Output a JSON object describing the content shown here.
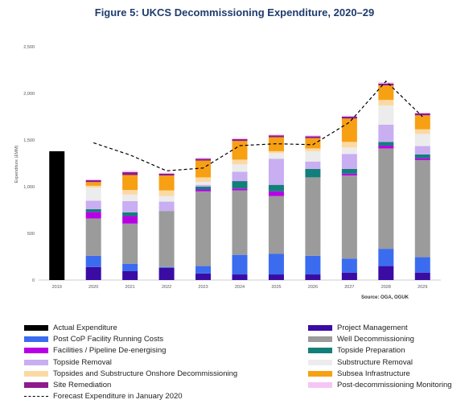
{
  "title": "Figure 5: UKCS Decommissioning Expenditure, 2020–29",
  "source": "Source: OGA, OGUK",
  "chart_data": {
    "type": "bar",
    "stacked": true,
    "ylabel": "Expenditure (£MM)",
    "xlabel": "",
    "ylim": [
      0,
      2500
    ],
    "yticks": [
      0,
      500,
      1000,
      1500,
      2000,
      2500
    ],
    "ytick_labels": [
      "0",
      "500",
      "1,000",
      "1,500",
      "2,000",
      "2,500"
    ],
    "grid": false,
    "categories": [
      "2019",
      "2020",
      "2021",
      "2022",
      "2023",
      "2024",
      "2025",
      "2026",
      "2027",
      "2028",
      "2029"
    ],
    "series": [
      {
        "name": "Actual Expenditure",
        "color": "#000000",
        "values": [
          1380,
          0,
          0,
          0,
          0,
          0,
          0,
          0,
          0,
          0,
          0
        ]
      },
      {
        "name": "Project Management",
        "color": "#3a0ca3",
        "values": [
          0,
          140,
          95,
          130,
          70,
          60,
          60,
          60,
          80,
          150,
          80
        ]
      },
      {
        "name": "Post CoP Facility Running Costs",
        "color": "#3b6cf0",
        "values": [
          0,
          120,
          80,
          10,
          80,
          210,
          220,
          200,
          150,
          185,
          165
        ]
      },
      {
        "name": "Well Decommissioning",
        "color": "#9b9b9b",
        "values": [
          0,
          400,
          430,
          600,
          800,
          690,
          620,
          840,
          890,
          1075,
          1040
        ]
      },
      {
        "name": "Facilities / Pipeline De-energising",
        "color": "#b800e6",
        "values": [
          0,
          70,
          80,
          0,
          20,
          20,
          50,
          0,
          20,
          30,
          20
        ]
      },
      {
        "name": "Topside Preparation",
        "color": "#137f7a",
        "values": [
          0,
          30,
          40,
          0,
          30,
          80,
          70,
          90,
          50,
          40,
          40
        ]
      },
      {
        "name": "Topside Removal",
        "color": "#c9aef2",
        "values": [
          0,
          90,
          120,
          100,
          20,
          100,
          280,
          80,
          160,
          185,
          90
        ]
      },
      {
        "name": "Substructure Removal",
        "color": "#ececec",
        "values": [
          0,
          140,
          70,
          60,
          30,
          80,
          60,
          110,
          70,
          205,
          130
        ]
      },
      {
        "name": "Topsides and Substructure Onshore Decommissioning",
        "color": "#fcd9a3",
        "values": [
          0,
          20,
          50,
          60,
          50,
          50,
          20,
          30,
          60,
          60,
          50
        ]
      },
      {
        "name": "Subsea Infrastructure",
        "color": "#f7a014",
        "values": [
          0,
          40,
          160,
          160,
          180,
          200,
          150,
          110,
          250,
          155,
          150
        ]
      },
      {
        "name": "Site Remediation",
        "color": "#8e1a8e",
        "values": [
          0,
          20,
          30,
          20,
          20,
          20,
          20,
          20,
          20,
          20,
          20
        ]
      },
      {
        "name": "Post-decommissioning Monitoring",
        "color": "#f5c6f5",
        "values": [
          0,
          10,
          15,
          10,
          10,
          10,
          10,
          10,
          10,
          15,
          10
        ]
      }
    ],
    "forecast_line": {
      "name": "Forecast Expenditure in January 2020",
      "style": "dashed",
      "color": "#000000",
      "x": [
        "2020",
        "2021",
        "2022",
        "2023",
        "2024",
        "2025",
        "2026",
        "2027",
        "2028",
        "2029"
      ],
      "values": [
        1470,
        1340,
        1170,
        1200,
        1440,
        1460,
        1450,
        1690,
        2130,
        1750
      ]
    },
    "legend_position": "bottom",
    "legend": [
      {
        "label": "Actual Expenditure",
        "color": "#000000",
        "kind": "swatch"
      },
      {
        "label": "Project Management",
        "color": "#3a0ca3",
        "kind": "swatch"
      },
      {
        "label": "Post CoP Facility Running Costs",
        "color": "#3b6cf0",
        "kind": "swatch"
      },
      {
        "label": "Well Decommissioning",
        "color": "#9b9b9b",
        "kind": "swatch"
      },
      {
        "label": "Facilities / Pipeline De-energising",
        "color": "#b800e6",
        "kind": "swatch"
      },
      {
        "label": "Topside Preparation",
        "color": "#137f7a",
        "kind": "swatch"
      },
      {
        "label": "Topside Removal",
        "color": "#c9aef2",
        "kind": "swatch"
      },
      {
        "label": "Substructure Removal",
        "color": "#ececec",
        "kind": "swatch"
      },
      {
        "label": "Topsides and Substructure Onshore Decommissioning",
        "color": "#fcd9a3",
        "kind": "swatch"
      },
      {
        "label": "Subsea Infrastructure",
        "color": "#f7a014",
        "kind": "swatch"
      },
      {
        "label": "Site Remediation",
        "color": "#8e1a8e",
        "kind": "swatch"
      },
      {
        "label": "Post-decommissioning Monitoring",
        "color": "#f5c6f5",
        "kind": "swatch"
      },
      {
        "label": "Forecast Expenditure in January 2020",
        "color": "#000000",
        "kind": "dashed-line"
      }
    ]
  }
}
